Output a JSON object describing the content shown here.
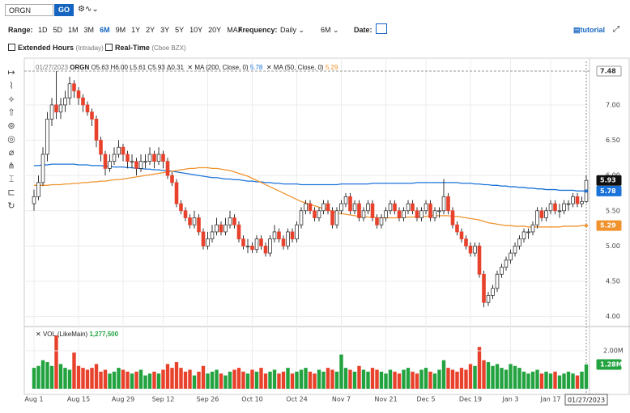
{
  "toolbar": {
    "symbol": "ORGN",
    "go": "GO",
    "range_label": "Range:",
    "ranges": [
      "1D",
      "5D",
      "1M",
      "3M",
      "6M",
      "9M",
      "1Y",
      "2Y",
      "3Y",
      "5Y",
      "10Y",
      "20Y",
      "MAX"
    ],
    "active_range": "6M",
    "frequency_label": "Frequency:",
    "frequency": "Daily",
    "period": "6M",
    "date_label": "Date:",
    "tutorial": "tutorial",
    "extended": "Extended Hours",
    "extended_note": "(Intraday)",
    "realtime": "Real-Time",
    "realtime_note": "(Cboe BZX)"
  },
  "legend": {
    "date": "01/27/2023",
    "symbol": "ORGN",
    "ohlc": [
      "O5.63",
      "H6.00",
      "L5.61",
      "C5.93",
      "Δ0.31"
    ],
    "volume_name": "VOL (LikeMain)",
    "volume_value": "1,277,500"
  },
  "chart_data": {
    "type": "candlestick",
    "categories": [
      "Aug 1",
      null,
      null,
      null,
      null,
      null,
      null,
      null,
      null,
      null,
      "Aug 15",
      null,
      null,
      null,
      null,
      null,
      null,
      null,
      null,
      null,
      "Aug 29",
      null,
      null,
      null,
      null,
      null,
      null,
      null,
      null,
      "Sep 12",
      null,
      null,
      null,
      null,
      null,
      null,
      null,
      null,
      null,
      "Sep 26",
      null,
      null,
      null,
      null,
      null,
      null,
      null,
      null,
      null,
      "Oct 10",
      null,
      null,
      null,
      null,
      null,
      null,
      null,
      null,
      null,
      "Oct 24",
      null,
      null,
      null,
      null,
      null,
      null,
      null,
      null,
      null,
      "Nov 7",
      null,
      null,
      null,
      null,
      null,
      null,
      null,
      null,
      null,
      "Nov 21",
      null,
      null,
      null,
      null,
      null,
      null,
      null,
      null,
      "Dec 5",
      null,
      null,
      null,
      null,
      null,
      null,
      null,
      null,
      null,
      "Dec 19",
      null,
      null,
      null,
      null,
      null,
      null,
      null,
      null,
      "Jan 3",
      null,
      null,
      null,
      null,
      null,
      null,
      null,
      null,
      "Jan 17",
      null,
      null,
      null,
      null,
      null,
      null,
      null,
      null
    ],
    "candles": [
      [
        5.6,
        5.8,
        5.5,
        5.7
      ],
      [
        5.7,
        6.0,
        5.65,
        5.9
      ],
      [
        5.9,
        6.4,
        5.85,
        6.3
      ],
      [
        6.3,
        6.9,
        6.2,
        6.8
      ],
      [
        6.8,
        7.1,
        6.7,
        7.0
      ],
      [
        7.0,
        7.48,
        6.8,
        6.9
      ],
      [
        6.9,
        7.1,
        6.8,
        7.0
      ],
      [
        7.0,
        7.2,
        6.9,
        7.1
      ],
      [
        7.1,
        7.4,
        7.0,
        7.3
      ],
      [
        7.3,
        7.35,
        7.1,
        7.2
      ],
      [
        7.2,
        7.25,
        7.0,
        7.1
      ],
      [
        7.1,
        7.15,
        6.9,
        7.0
      ],
      [
        7.0,
        7.05,
        6.85,
        6.9
      ],
      [
        6.9,
        6.95,
        6.7,
        6.8
      ],
      [
        6.8,
        6.85,
        6.4,
        6.5
      ],
      [
        6.5,
        6.55,
        6.2,
        6.3
      ],
      [
        6.3,
        6.35,
        6.0,
        6.1
      ],
      [
        6.1,
        6.3,
        6.05,
        6.2
      ],
      [
        6.2,
        6.4,
        6.15,
        6.3
      ],
      [
        6.3,
        6.5,
        6.25,
        6.4
      ],
      [
        6.4,
        6.45,
        6.2,
        6.3
      ],
      [
        6.3,
        6.35,
        6.1,
        6.2
      ],
      [
        6.2,
        6.3,
        6.1,
        6.2
      ],
      [
        6.2,
        6.25,
        6.0,
        6.1
      ],
      [
        6.1,
        6.3,
        6.05,
        6.2
      ],
      [
        6.2,
        6.3,
        6.1,
        6.2
      ],
      [
        6.2,
        6.4,
        6.15,
        6.3
      ],
      [
        6.3,
        6.35,
        6.1,
        6.2
      ],
      [
        6.2,
        6.4,
        6.15,
        6.3
      ],
      [
        6.3,
        6.35,
        6.1,
        6.2
      ],
      [
        6.2,
        6.25,
        5.95,
        6.0
      ],
      [
        6.0,
        6.05,
        5.85,
        5.9
      ],
      [
        5.9,
        5.95,
        5.55,
        5.6
      ],
      [
        5.6,
        5.65,
        5.45,
        5.5
      ],
      [
        5.5,
        5.55,
        5.35,
        5.4
      ],
      [
        5.4,
        5.45,
        5.25,
        5.3
      ],
      [
        5.3,
        5.5,
        5.25,
        5.4
      ],
      [
        5.4,
        5.45,
        5.15,
        5.2
      ],
      [
        5.2,
        5.25,
        4.95,
        5.0
      ],
      [
        5.0,
        5.2,
        4.95,
        5.1
      ],
      [
        5.1,
        5.3,
        5.05,
        5.2
      ],
      [
        5.2,
        5.4,
        5.15,
        5.3
      ],
      [
        5.3,
        5.35,
        5.15,
        5.2
      ],
      [
        5.2,
        5.4,
        5.15,
        5.3
      ],
      [
        5.3,
        5.5,
        5.25,
        5.4
      ],
      [
        5.4,
        5.45,
        5.25,
        5.3
      ],
      [
        5.3,
        5.35,
        5.05,
        5.1
      ],
      [
        5.1,
        5.15,
        4.95,
        5.0
      ],
      [
        5.0,
        5.1,
        4.9,
        5.0
      ],
      [
        5.0,
        5.05,
        4.9,
        4.95
      ],
      [
        4.95,
        5.15,
        4.9,
        5.1
      ],
      [
        5.1,
        5.15,
        4.95,
        5.0
      ],
      [
        5.0,
        5.05,
        4.85,
        4.9
      ],
      [
        4.9,
        5.15,
        4.85,
        5.1
      ],
      [
        5.1,
        5.3,
        5.05,
        5.2
      ],
      [
        5.2,
        5.25,
        5.05,
        5.1
      ],
      [
        5.1,
        5.15,
        4.95,
        5.0
      ],
      [
        5.0,
        5.25,
        4.95,
        5.2
      ],
      [
        5.2,
        5.25,
        5.05,
        5.1
      ],
      [
        5.1,
        5.35,
        5.05,
        5.3
      ],
      [
        5.3,
        5.55,
        5.25,
        5.5
      ],
      [
        5.5,
        5.65,
        5.45,
        5.6
      ],
      [
        5.6,
        5.65,
        5.45,
        5.5
      ],
      [
        5.5,
        5.55,
        5.35,
        5.4
      ],
      [
        5.4,
        5.55,
        5.35,
        5.5
      ],
      [
        5.5,
        5.65,
        5.45,
        5.6
      ],
      [
        5.6,
        5.65,
        5.45,
        5.5
      ],
      [
        5.5,
        5.55,
        5.25,
        5.3
      ],
      [
        5.3,
        5.55,
        5.25,
        5.5
      ],
      [
        5.5,
        5.65,
        5.45,
        5.6
      ],
      [
        5.6,
        5.75,
        5.55,
        5.7
      ],
      [
        5.7,
        5.75,
        5.45,
        5.5
      ],
      [
        5.5,
        5.65,
        5.45,
        5.6
      ],
      [
        5.6,
        5.65,
        5.35,
        5.4
      ],
      [
        5.4,
        5.55,
        5.35,
        5.5
      ],
      [
        5.5,
        5.65,
        5.45,
        5.6
      ],
      [
        5.6,
        5.65,
        5.35,
        5.4
      ],
      [
        5.4,
        5.45,
        5.25,
        5.3
      ],
      [
        5.3,
        5.45,
        5.25,
        5.4
      ],
      [
        5.4,
        5.55,
        5.35,
        5.5
      ],
      [
        5.5,
        5.65,
        5.45,
        5.6
      ],
      [
        5.6,
        5.65,
        5.45,
        5.5
      ],
      [
        5.5,
        5.55,
        5.35,
        5.4
      ],
      [
        5.4,
        5.55,
        5.35,
        5.5
      ],
      [
        5.5,
        5.65,
        5.45,
        5.6
      ],
      [
        5.6,
        5.65,
        5.45,
        5.5
      ],
      [
        5.5,
        5.55,
        5.35,
        5.4
      ],
      [
        5.4,
        5.55,
        5.35,
        5.5
      ],
      [
        5.5,
        5.65,
        5.45,
        5.6
      ],
      [
        5.6,
        5.65,
        5.35,
        5.4
      ],
      [
        5.4,
        5.55,
        5.35,
        5.5
      ],
      [
        5.5,
        5.55,
        5.4,
        5.5
      ],
      [
        5.5,
        5.95,
        5.45,
        5.7
      ],
      [
        5.7,
        5.75,
        5.45,
        5.5
      ],
      [
        5.5,
        5.55,
        5.25,
        5.3
      ],
      [
        5.3,
        5.35,
        5.15,
        5.2
      ],
      [
        5.2,
        5.25,
        5.05,
        5.1
      ],
      [
        5.1,
        5.15,
        4.95,
        5.0
      ],
      [
        5.0,
        5.05,
        4.85,
        4.9
      ],
      [
        4.9,
        5.05,
        4.85,
        5.0
      ],
      [
        5.0,
        5.05,
        4.55,
        4.6
      ],
      [
        4.6,
        4.65,
        4.13,
        4.2
      ],
      [
        4.2,
        4.35,
        4.15,
        4.3
      ],
      [
        4.3,
        4.45,
        4.25,
        4.4
      ],
      [
        4.4,
        4.65,
        4.35,
        4.6
      ],
      [
        4.6,
        4.75,
        4.55,
        4.7
      ],
      [
        4.7,
        4.85,
        4.65,
        4.8
      ],
      [
        4.8,
        4.95,
        4.75,
        4.9
      ],
      [
        4.9,
        5.05,
        4.85,
        5.0
      ],
      [
        5.0,
        5.15,
        4.95,
        5.1
      ],
      [
        5.1,
        5.25,
        5.05,
        5.2
      ],
      [
        5.2,
        5.25,
        5.1,
        5.2
      ],
      [
        5.2,
        5.35,
        5.15,
        5.3
      ],
      [
        5.3,
        5.55,
        5.25,
        5.5
      ],
      [
        5.5,
        5.55,
        5.35,
        5.4
      ],
      [
        5.4,
        5.55,
        5.35,
        5.5
      ],
      [
        5.5,
        5.65,
        5.45,
        5.6
      ],
      [
        5.6,
        5.65,
        5.45,
        5.5
      ],
      [
        5.5,
        5.6,
        5.4,
        5.5
      ],
      [
        5.5,
        5.65,
        5.45,
        5.6
      ],
      [
        5.6,
        5.65,
        5.5,
        5.6
      ],
      [
        5.6,
        5.75,
        5.55,
        5.7
      ],
      [
        5.7,
        5.75,
        5.55,
        5.6
      ],
      [
        5.6,
        5.7,
        5.55,
        5.63
      ],
      [
        5.63,
        6.0,
        5.61,
        5.93
      ]
    ],
    "up_color": "#ffffff",
    "down_color": "#e8412c",
    "ylim": [
      3.87,
      7.64
    ],
    "yticks": [
      {
        "value": 4,
        "label": "4.00"
      },
      {
        "value": 4.5,
        "label": "4.50"
      },
      {
        "value": 5,
        "label": "5.00"
      },
      {
        "value": 5.5,
        "label": "5.50"
      },
      {
        "value": 6,
        "label": "6.00"
      },
      {
        "value": 6.5,
        "label": "6.50"
      },
      {
        "value": 7,
        "label": "7.00"
      }
    ],
    "grid": true,
    "high_line": {
      "value": 7.48,
      "label": "7.48"
    },
    "last_close": {
      "value": 5.93,
      "label": "5.93"
    },
    "series": [
      {
        "name": "MA (200, Close, 0)",
        "color": "#1a73d9",
        "last": 5.78,
        "values": [
          6.14,
          6.14,
          6.15,
          6.15,
          6.16,
          6.16,
          6.16,
          6.16,
          6.16,
          6.16,
          6.15,
          6.15,
          6.15,
          6.14,
          6.14,
          6.14,
          6.13,
          6.13,
          6.12,
          6.12,
          6.12,
          6.11,
          6.11,
          6.1,
          6.1,
          6.09,
          6.09,
          6.08,
          6.08,
          6.07,
          6.07,
          6.06,
          6.05,
          6.04,
          6.03,
          6.02,
          6.01,
          6.0,
          5.99,
          5.98,
          5.97,
          5.97,
          5.96,
          5.95,
          5.95,
          5.94,
          5.94,
          5.93,
          5.92,
          5.92,
          5.91,
          5.91,
          5.9,
          5.9,
          5.89,
          5.89,
          5.88,
          5.88,
          5.88,
          5.88,
          5.87,
          5.87,
          5.87,
          5.87,
          5.87,
          5.87,
          5.87,
          5.87,
          5.87,
          5.88,
          5.88,
          5.88,
          5.88,
          5.88,
          5.88,
          5.88,
          5.89,
          5.89,
          5.89,
          5.89,
          5.89,
          5.89,
          5.89,
          5.89,
          5.89,
          5.89,
          5.9,
          5.9,
          5.9,
          5.9,
          5.9,
          5.9,
          5.9,
          5.9,
          5.9,
          5.9,
          5.89,
          5.89,
          5.89,
          5.88,
          5.88,
          5.87,
          5.87,
          5.86,
          5.86,
          5.85,
          5.85,
          5.84,
          5.84,
          5.83,
          5.83,
          5.82,
          5.82,
          5.81,
          5.81,
          5.8,
          5.8,
          5.8,
          5.79,
          5.79,
          5.79,
          5.79,
          5.78,
          5.78,
          5.78
        ]
      },
      {
        "name": "MA (50, Close, 0)",
        "color": "#f0922e",
        "last": 5.29,
        "values": [
          5.86,
          5.86,
          5.86,
          5.86,
          5.87,
          5.87,
          5.87,
          5.88,
          5.88,
          5.89,
          5.89,
          5.9,
          5.9,
          5.91,
          5.91,
          5.92,
          5.92,
          5.93,
          5.94,
          5.94,
          5.95,
          5.96,
          5.97,
          5.98,
          5.99,
          6.0,
          6.01,
          6.02,
          6.03,
          6.04,
          6.05,
          6.06,
          6.07,
          6.08,
          6.09,
          6.1,
          6.1,
          6.11,
          6.11,
          6.11,
          6.1,
          6.1,
          6.09,
          6.08,
          6.07,
          6.05,
          6.03,
          6.01,
          5.99,
          5.96,
          5.93,
          5.9,
          5.87,
          5.84,
          5.81,
          5.78,
          5.75,
          5.72,
          5.69,
          5.66,
          5.63,
          5.61,
          5.59,
          5.57,
          5.55,
          5.53,
          5.51,
          5.49,
          5.47,
          5.46,
          5.45,
          5.44,
          5.43,
          5.42,
          5.42,
          5.41,
          5.41,
          5.4,
          5.4,
          5.4,
          5.4,
          5.4,
          5.4,
          5.41,
          5.41,
          5.41,
          5.42,
          5.42,
          5.42,
          5.43,
          5.43,
          5.43,
          5.43,
          5.43,
          5.42,
          5.42,
          5.41,
          5.4,
          5.39,
          5.38,
          5.37,
          5.35,
          5.33,
          5.32,
          5.31,
          5.3,
          5.29,
          5.29,
          5.28,
          5.28,
          5.28,
          5.27,
          5.27,
          5.27,
          5.27,
          5.27,
          5.27,
          5.27,
          5.27,
          5.28,
          5.28,
          5.28,
          5.28,
          5.29,
          5.29
        ]
      }
    ],
    "volume": {
      "up_color": "#22a340",
      "down_color": "#e8412c",
      "ylim": [
        0,
        3230000
      ],
      "yticks": [
        {
          "value": 2000000,
          "label": "2.00M"
        }
      ],
      "last": 1277500,
      "last_label": "1.28M",
      "values": [
        1100000,
        1200000,
        1500000,
        1400000,
        1200000,
        2800000,
        1300000,
        1100000,
        1000000,
        1900000,
        1200000,
        1100000,
        1000000,
        1100000,
        1300000,
        900000,
        1000000,
        800000,
        900000,
        1100000,
        1000000,
        900000,
        800000,
        900000,
        1000000,
        700000,
        800000,
        900000,
        800000,
        1000000,
        1300000,
        1100000,
        1400000,
        1100000,
        900000,
        1000000,
        700000,
        900000,
        1200000,
        800000,
        900000,
        1000000,
        800000,
        700000,
        900000,
        1000000,
        1100000,
        900000,
        800000,
        1000000,
        900000,
        1100000,
        800000,
        900000,
        1000000,
        800000,
        900000,
        1100000,
        800000,
        900000,
        1000000,
        1100000,
        900000,
        800000,
        1000000,
        900000,
        1100000,
        1000000,
        900000,
        1800000,
        1100000,
        1000000,
        900000,
        1200000,
        1000000,
        900000,
        1100000,
        1000000,
        900000,
        800000,
        1000000,
        900000,
        800000,
        1000000,
        1100000,
        900000,
        800000,
        1000000,
        1100000,
        900000,
        800000,
        1000000,
        1500000,
        1100000,
        1000000,
        900000,
        1100000,
        1000000,
        1300000,
        1200000,
        2200000,
        1500000,
        1400000,
        1200000,
        1300000,
        1100000,
        1000000,
        1300000,
        1200000,
        1100000,
        900000,
        800000,
        900000,
        1000000,
        800000,
        900000,
        800000,
        900000,
        700000,
        800000,
        900000,
        800000,
        700000,
        900000,
        1277500
      ]
    }
  }
}
